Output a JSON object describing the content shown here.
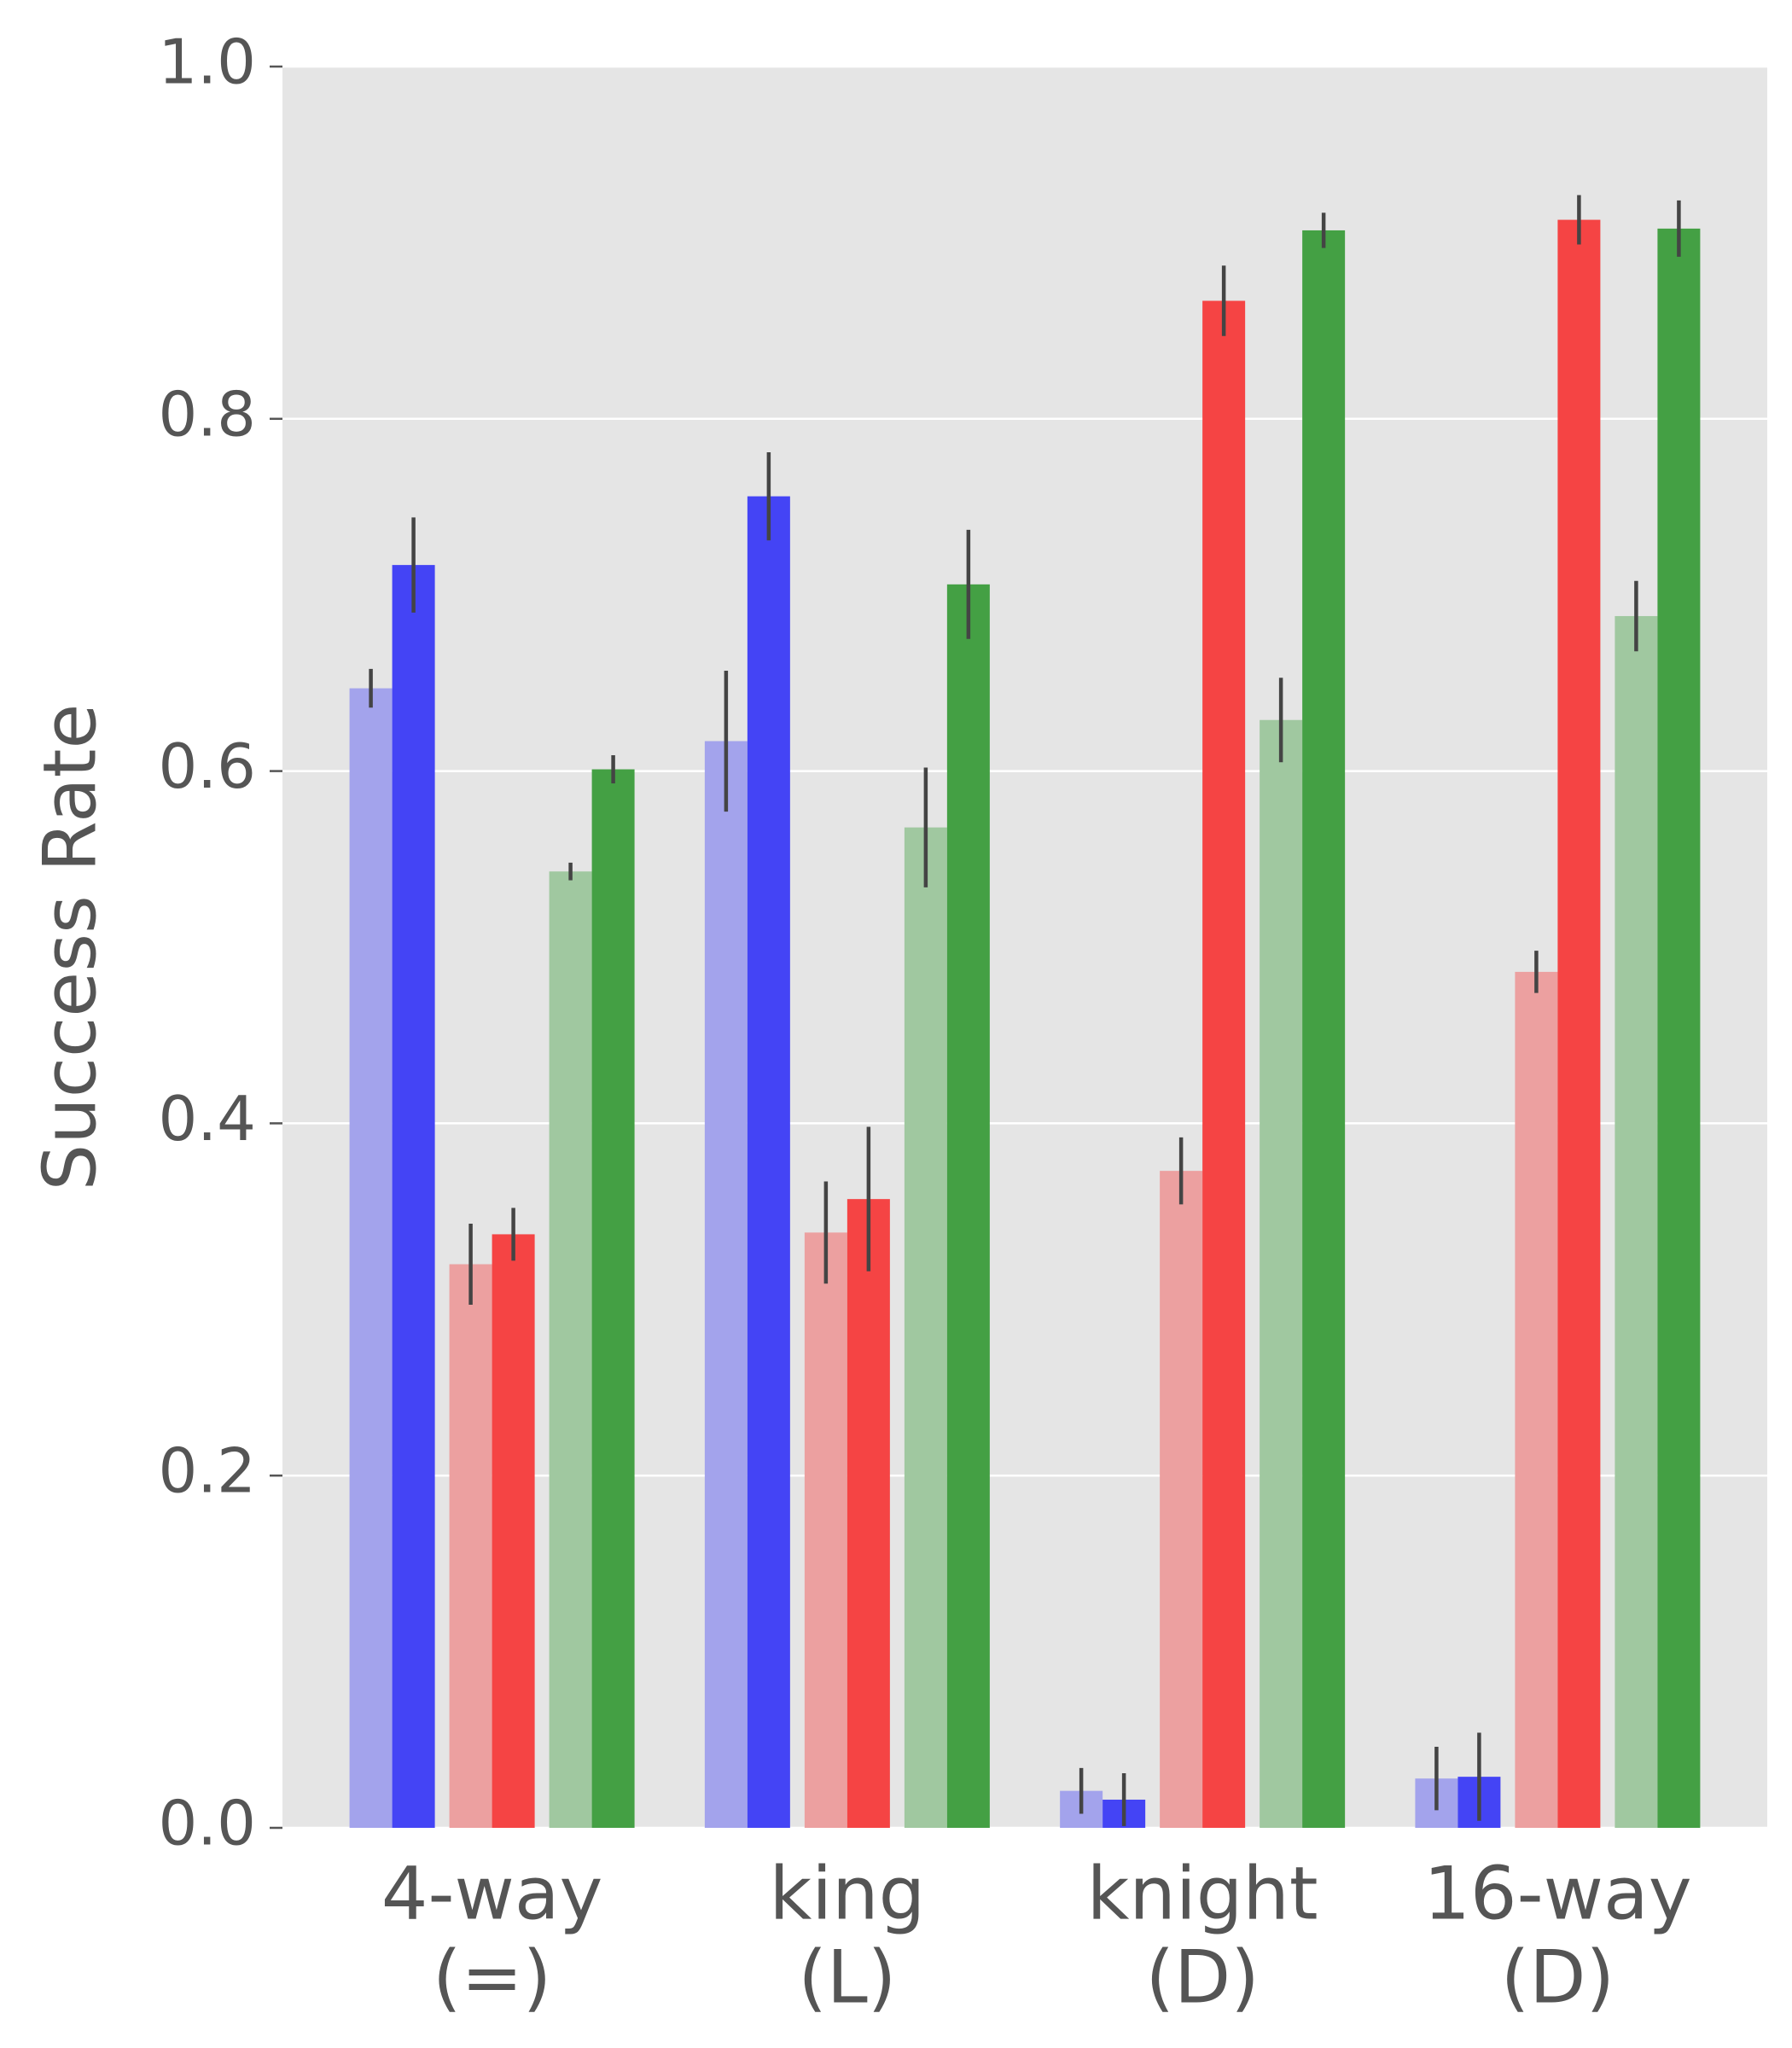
{
  "chart_data": {
    "type": "bar",
    "y_label": "Success Rate",
    "categories": [
      [
        "4-way",
        "(=)"
      ],
      [
        "king",
        "(L)"
      ],
      [
        "knight",
        "(D)"
      ],
      [
        "16-way",
        "(D)"
      ]
    ],
    "series": [
      {
        "color": "#a3a3ec",
        "values": [
          0.647,
          0.617,
          0.021,
          0.028
        ],
        "errors": [
          0.011,
          0.04,
          0.013,
          0.018
        ]
      },
      {
        "color": "#4444f5",
        "values": [
          0.717,
          0.756,
          0.016,
          0.029
        ],
        "errors": [
          0.027,
          0.025,
          0.015,
          0.025
        ]
      },
      {
        "color": "#eca0a0",
        "values": [
          0.32,
          0.338,
          0.373,
          0.486
        ],
        "errors": [
          0.023,
          0.029,
          0.019,
          0.012
        ]
      },
      {
        "color": "#f54444",
        "values": [
          0.337,
          0.357,
          0.867,
          0.913
        ],
        "errors": [
          0.015,
          0.041,
          0.02,
          0.014
        ]
      },
      {
        "color": "#a0c8a0",
        "values": [
          0.543,
          0.568,
          0.629,
          0.688
        ],
        "errors": [
          0.005,
          0.034,
          0.024,
          0.02
        ]
      },
      {
        "color": "#44a044",
        "values": [
          0.601,
          0.706,
          0.907,
          0.908
        ],
        "errors": [
          0.008,
          0.031,
          0.01,
          0.016
        ]
      }
    ],
    "ylim": [
      0,
      1
    ],
    "yticks": [
      {
        "value": 0,
        "label": "0.0"
      },
      0.2,
      0.4,
      0.6,
      0.8,
      {
        "value": 1,
        "label": "1.0"
      }
    ],
    "grid": true
  }
}
